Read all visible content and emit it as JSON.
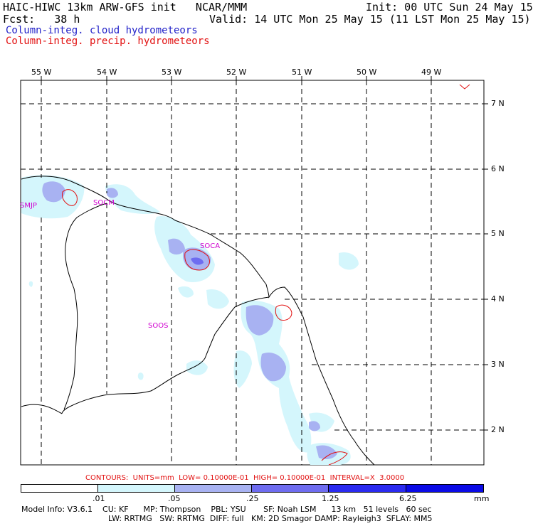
{
  "header": {
    "line1_left": "HAIC-HIWC 13km ARW-GFS init   NCAR/MMM",
    "line1_right": "Init: 00 UTC Sun 24 May 15",
    "line2_left": "Fcst:   38 h",
    "line2_right": "Valid: 14 UTC Mon 25 May 15 (11 LST Mon 25 May 15)",
    "line3": "Column-integ. cloud hydrometeors",
    "line4": "Column-integ. precip. hydrometeors"
  },
  "map": {
    "lon_labels": [
      "55 W",
      "54 W",
      "53 W",
      "52 W",
      "51 W",
      "50 W",
      "49 W"
    ],
    "lat_labels": [
      "7 N",
      "6 N",
      "5 N",
      "4 N",
      "3 N",
      "2 N"
    ],
    "stations": [
      "SMJP",
      "SOCM",
      "SOCA",
      "SOOS"
    ]
  },
  "contour_info": "CONTOURS:  UNITS=mm  LOW= 0.10000E-01  HIGH= 0.10000E-01  INTERVAL=X  3.0000",
  "legend": {
    "labels": [
      ".01",
      ".05",
      ".25",
      "1.25",
      "6.25",
      "mm"
    ],
    "colors": [
      "#ffffff",
      "#d4f6fc",
      "#a8b2f2",
      "#6e6cf0",
      "#2a2af0",
      "#0a0ae6"
    ]
  },
  "footer": {
    "line1": "Model Info: V3.6.1    CU: KF      MP: Thompson    PBL: YSU       SF: Noah LSM      13 km   51 levels   60 sec",
    "line2": "LW: RRTMG   SW: RRTMG  DIFF: full   KM: 2D Smagor DAMP: Rayleigh3  SFLAY: MM5"
  }
}
